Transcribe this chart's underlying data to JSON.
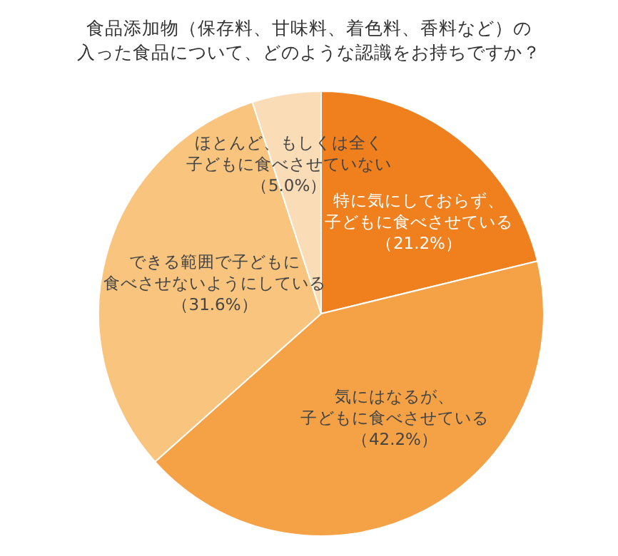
{
  "chart_data": {
    "type": "pie",
    "title": "食品添加物（保存料、甘味料、着色料、香料など）の入った食品について、どのような認識をお持ちですか？",
    "categories": [
      "特に気にしておらず、子どもに食べさせている",
      "気にはなるが、子どもに食べさせている",
      "できる範囲で子どもに食べさせないようにしている",
      "ほとんど、もしくは全く子どもに食べさせていない"
    ],
    "values": [
      21.2,
      42.2,
      31.6,
      5.0
    ],
    "value_labels": [
      "（21.2%）",
      "（42.2%）",
      "（31.6%）",
      "（5.0%）"
    ],
    "colors": [
      "#f07f1e",
      "#f5a247",
      "#f8c47e",
      "#fadcb6"
    ]
  }
}
